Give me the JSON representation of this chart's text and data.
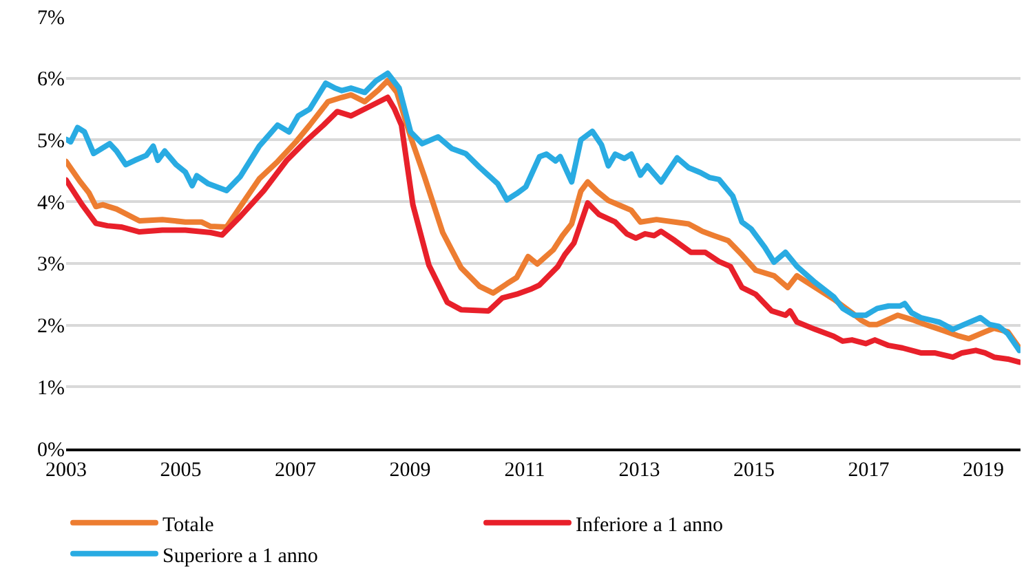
{
  "chart_data": {
    "type": "line",
    "xlim": [
      2003,
      2019.65
    ],
    "xticks": [
      2003,
      2005,
      2007,
      2009,
      2011,
      2013,
      2015,
      2017,
      2019
    ],
    "ylim": [
      0,
      7
    ],
    "yticks": [
      {
        "value": 0,
        "label": "0%"
      },
      {
        "value": 1,
        "label": "1%"
      },
      {
        "value": 2,
        "label": "2%"
      },
      {
        "value": 3,
        "label": "3%"
      },
      {
        "value": 4,
        "label": "4%"
      },
      {
        "value": 5,
        "label": "5%"
      },
      {
        "value": 6,
        "label": "6%"
      },
      {
        "value": 7,
        "label": "7%"
      }
    ],
    "grid": "y",
    "legend": "bottom",
    "line_style": "solid",
    "marker": "none",
    "series": [
      {
        "name": "Totale",
        "color": "#ed7d31",
        "x": [
          2003,
          2003.24,
          2003.4,
          2003.52,
          2003.64,
          2003.88,
          2004.28,
          2004.68,
          2005.08,
          2005.36,
          2005.52,
          2005.8,
          2006.04,
          2006.37,
          2006.69,
          2007.01,
          2007.25,
          2007.57,
          2007.81,
          2007.97,
          2008.21,
          2008.45,
          2008.61,
          2008.77,
          2009.01,
          2009.25,
          2009.57,
          2009.89,
          2010.21,
          2010.45,
          2010.69,
          2010.86,
          2011.06,
          2011.22,
          2011.5,
          2011.66,
          2011.82,
          2011.98,
          2012.1,
          2012.26,
          2012.46,
          2012.66,
          2012.86,
          2013.02,
          2013.3,
          2013.62,
          2013.86,
          2014.1,
          2014.3,
          2014.55,
          2014.79,
          2015.03,
          2015.35,
          2015.59,
          2015.75,
          2016.07,
          2016.39,
          2016.71,
          2016.87,
          2017.01,
          2017.15,
          2017.51,
          2017.79,
          2017.99,
          2018.31,
          2018.55,
          2018.75,
          2019.03,
          2019.19,
          2019.43,
          2019.63
        ],
        "values": [
          4.65,
          4.33,
          4.14,
          3.92,
          3.95,
          3.88,
          3.69,
          3.71,
          3.67,
          3.67,
          3.6,
          3.59,
          3.92,
          4.37,
          4.65,
          4.97,
          5.24,
          5.62,
          5.69,
          5.73,
          5.62,
          5.81,
          5.96,
          5.77,
          5.05,
          4.41,
          3.5,
          2.93,
          2.63,
          2.52,
          2.67,
          2.77,
          3.11,
          2.99,
          3.22,
          3.45,
          3.64,
          4.17,
          4.32,
          4.17,
          4.02,
          3.94,
          3.86,
          3.67,
          3.71,
          3.67,
          3.64,
          3.52,
          3.45,
          3.37,
          3.14,
          2.89,
          2.8,
          2.61,
          2.8,
          2.61,
          2.42,
          2.2,
          2.08,
          2.01,
          2.01,
          2.16,
          2.08,
          2.01,
          1.91,
          1.83,
          1.78,
          1.89,
          1.95,
          1.89,
          1.63
        ]
      },
      {
        "name": "Inferiore a 1 anno",
        "color": "#e8202a",
        "x": [
          2003,
          2003.28,
          2003.52,
          2003.72,
          2003.96,
          2004.28,
          2004.68,
          2005.08,
          2005.52,
          2005.72,
          2006.04,
          2006.45,
          2006.85,
          2007.17,
          2007.49,
          2007.73,
          2007.97,
          2008.29,
          2008.61,
          2008.73,
          2008.85,
          2009.05,
          2009.33,
          2009.65,
          2009.89,
          2010.37,
          2010.61,
          2010.86,
          2011.1,
          2011.26,
          2011.58,
          2011.7,
          2011.86,
          2012.1,
          2012.3,
          2012.58,
          2012.78,
          2012.94,
          2013.1,
          2013.26,
          2013.38,
          2013.62,
          2013.9,
          2014.15,
          2014.39,
          2014.59,
          2014.79,
          2015.03,
          2015.31,
          2015.55,
          2015.63,
          2015.75,
          2016.07,
          2016.39,
          2016.55,
          2016.71,
          2016.95,
          2017.11,
          2017.35,
          2017.59,
          2017.91,
          2018.15,
          2018.47,
          2018.63,
          2018.87,
          2019.03,
          2019.19,
          2019.43,
          2019.63
        ],
        "values": [
          4.35,
          3.95,
          3.65,
          3.61,
          3.59,
          3.51,
          3.54,
          3.54,
          3.5,
          3.46,
          3.76,
          4.18,
          4.67,
          4.97,
          5.24,
          5.46,
          5.39,
          5.54,
          5.69,
          5.5,
          5.24,
          3.95,
          2.97,
          2.37,
          2.25,
          2.23,
          2.44,
          2.5,
          2.58,
          2.65,
          2.95,
          3.14,
          3.33,
          3.98,
          3.79,
          3.67,
          3.48,
          3.41,
          3.48,
          3.45,
          3.52,
          3.37,
          3.18,
          3.18,
          3.03,
          2.95,
          2.61,
          2.5,
          2.23,
          2.16,
          2.23,
          2.05,
          1.93,
          1.82,
          1.74,
          1.76,
          1.7,
          1.76,
          1.67,
          1.63,
          1.55,
          1.55,
          1.48,
          1.55,
          1.59,
          1.55,
          1.48,
          1.45,
          1.4
        ]
      },
      {
        "name": "Superiore a 1 anno",
        "color": "#29abe2",
        "x": [
          2003,
          2003.08,
          2003.2,
          2003.32,
          2003.48,
          2003.76,
          2003.88,
          2004.04,
          2004.2,
          2004.4,
          2004.52,
          2004.6,
          2004.72,
          2004.92,
          2005.08,
          2005.2,
          2005.28,
          2005.48,
          2005.8,
          2006.04,
          2006.37,
          2006.69,
          2006.89,
          2007.05,
          2007.25,
          2007.53,
          2007.69,
          2007.81,
          2007.97,
          2008.21,
          2008.41,
          2008.61,
          2008.81,
          2009.01,
          2009.21,
          2009.49,
          2009.73,
          2009.97,
          2010.21,
          2010.53,
          2010.69,
          2010.86,
          2011.02,
          2011.26,
          2011.38,
          2011.54,
          2011.62,
          2011.82,
          2011.98,
          2012.18,
          2012.34,
          2012.46,
          2012.58,
          2012.74,
          2012.86,
          2013.02,
          2013.14,
          2013.38,
          2013.66,
          2013.86,
          2014.07,
          2014.23,
          2014.39,
          2014.63,
          2014.79,
          2014.95,
          2015.19,
          2015.35,
          2015.55,
          2015.75,
          2016.07,
          2016.39,
          2016.55,
          2016.75,
          2016.95,
          2017.15,
          2017.35,
          2017.55,
          2017.63,
          2017.75,
          2017.91,
          2018.23,
          2018.47,
          2018.67,
          2018.95,
          2019.11,
          2019.27,
          2019.43,
          2019.63
        ],
        "values": [
          5.01,
          4.97,
          5.2,
          5.13,
          4.78,
          4.94,
          4.82,
          4.6,
          4.67,
          4.75,
          4.9,
          4.67,
          4.82,
          4.6,
          4.48,
          4.26,
          4.42,
          4.29,
          4.18,
          4.41,
          4.9,
          5.24,
          5.13,
          5.39,
          5.5,
          5.92,
          5.84,
          5.8,
          5.84,
          5.77,
          5.96,
          6.08,
          5.84,
          5.13,
          4.94,
          5.05,
          4.86,
          4.78,
          4.56,
          4.29,
          4.03,
          4.13,
          4.24,
          4.73,
          4.77,
          4.66,
          4.73,
          4.32,
          5.0,
          5.14,
          4.92,
          4.58,
          4.77,
          4.7,
          4.77,
          4.43,
          4.58,
          4.32,
          4.71,
          4.55,
          4.47,
          4.39,
          4.36,
          4.09,
          3.67,
          3.56,
          3.26,
          3.02,
          3.18,
          2.95,
          2.69,
          2.46,
          2.27,
          2.16,
          2.16,
          2.27,
          2.31,
          2.31,
          2.35,
          2.2,
          2.12,
          2.05,
          1.93,
          2.01,
          2.12,
          2.01,
          1.98,
          1.86,
          1.59
        ]
      }
    ]
  }
}
